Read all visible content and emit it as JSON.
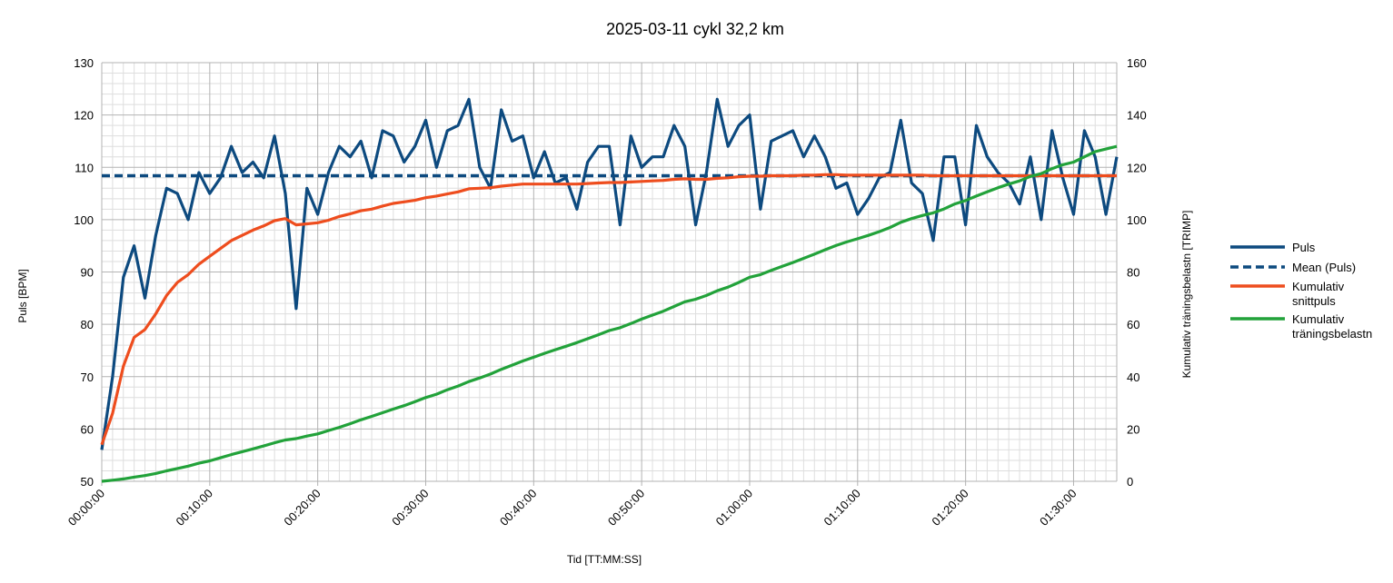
{
  "chart_data": {
    "type": "line",
    "title": "2025-03-11 cykl 32,2 km",
    "xlabel": "Tid [TT:MM:SS]",
    "ylabel_left": "Puls [BPM]",
    "ylabel_right": "Kumulativ träningsbelastn [TRIMP]",
    "x_unit": "minutes",
    "xlim": [
      0,
      94
    ],
    "ylim_left": [
      50,
      130
    ],
    "ylim_right": [
      0,
      160
    ],
    "x_ticks": [
      "00:00:00",
      "00:10:00",
      "00:20:00",
      "00:30:00",
      "00:40:00",
      "00:50:00",
      "01:00:00",
      "01:10:00",
      "01:20:00",
      "01:30:00"
    ],
    "x_tick_minutes": [
      0,
      10,
      20,
      30,
      40,
      50,
      60,
      70,
      80,
      90
    ],
    "y_ticks_left": [
      50,
      60,
      70,
      80,
      90,
      100,
      110,
      120,
      130
    ],
    "y_ticks_right": [
      0,
      20,
      40,
      60,
      80,
      100,
      120,
      140,
      160
    ],
    "grid": true,
    "legend_position": "right",
    "x": [
      0,
      1,
      2,
      3,
      4,
      5,
      6,
      7,
      8,
      9,
      10,
      11,
      12,
      13,
      14,
      15,
      16,
      17,
      18,
      19,
      20,
      21,
      22,
      23,
      24,
      25,
      26,
      27,
      28,
      29,
      30,
      31,
      32,
      33,
      34,
      35,
      36,
      37,
      38,
      39,
      40,
      41,
      42,
      43,
      44,
      45,
      46,
      47,
      48,
      49,
      50,
      51,
      52,
      53,
      54,
      55,
      56,
      57,
      58,
      59,
      60,
      61,
      62,
      63,
      64,
      65,
      66,
      67,
      68,
      69,
      70,
      71,
      72,
      73,
      74,
      75,
      76,
      77,
      78,
      79,
      80,
      81,
      82,
      83,
      84,
      85,
      86,
      87,
      88,
      89,
      90,
      91,
      92,
      93,
      94
    ],
    "series": [
      {
        "name": "Puls",
        "axis": "left",
        "color": "#0d4a7f",
        "style": "solid",
        "values": [
          56,
          70,
          89,
          95,
          85,
          97,
          106,
          105,
          100,
          109,
          105,
          108,
          114,
          109,
          111,
          108,
          116,
          105,
          83,
          106,
          101,
          109,
          114,
          112,
          115,
          108,
          117,
          116,
          111,
          114,
          119,
          110,
          117,
          118,
          123,
          110,
          106,
          121,
          115,
          116,
          108,
          113,
          107,
          108,
          102,
          111,
          114,
          114,
          99,
          116,
          110,
          112,
          112,
          118,
          114,
          99,
          109,
          123,
          114,
          118,
          120,
          102,
          115,
          116,
          117,
          112,
          116,
          112,
          106,
          107,
          101,
          104,
          108,
          109,
          119,
          107,
          105,
          96,
          112,
          112,
          99,
          118,
          112,
          109,
          107,
          103,
          112,
          100,
          117,
          108,
          101,
          117,
          112,
          101,
          112
        ]
      },
      {
        "name": "Mean (Puls)",
        "axis": "left",
        "color": "#0d4a7f",
        "style": "dashed",
        "constant": 108.4
      },
      {
        "name": "Kumulativ snittpuls",
        "axis": "left",
        "color": "#ee4d1e",
        "style": "solid",
        "values": [
          57,
          63,
          72,
          77.5,
          79,
          82,
          85.5,
          88,
          89.5,
          91.5,
          93,
          94.5,
          96,
          97,
          98,
          98.8,
          99.8,
          100.2,
          99,
          99.2,
          99.4,
          99.9,
          100.6,
          101.1,
          101.7,
          102,
          102.6,
          103.1,
          103.4,
          103.7,
          104.2,
          104.5,
          104.9,
          105.3,
          105.9,
          106,
          106.1,
          106.4,
          106.6,
          106.8,
          106.8,
          106.8,
          106.8,
          106.8,
          106.8,
          106.9,
          107,
          107.1,
          107.1,
          107.2,
          107.3,
          107.4,
          107.5,
          107.7,
          107.8,
          107.7,
          107.7,
          107.9,
          108,
          108.2,
          108.3,
          108.3,
          108.4,
          108.4,
          108.4,
          108.5,
          108.5,
          108.6,
          108.6,
          108.5,
          108.5,
          108.5,
          108.5,
          108.5,
          108.5,
          108.5,
          108.5,
          108.4,
          108.4,
          108.4,
          108.4,
          108.4,
          108.4,
          108.4,
          108.4,
          108.4,
          108.4,
          108.4,
          108.4,
          108.4,
          108.4,
          108.4,
          108.4,
          108.4,
          108.4
        ]
      },
      {
        "name": "Kumulativ träningsbelastn",
        "axis": "right",
        "color": "#22a23a",
        "style": "solid",
        "values": [
          0,
          0.4,
          0.9,
          1.6,
          2.2,
          3,
          4,
          4.9,
          5.8,
          6.9,
          7.8,
          9,
          10.2,
          11.3,
          12.4,
          13.5,
          14.7,
          15.8,
          16.3,
          17.3,
          18.1,
          19.4,
          20.6,
          22,
          23.5,
          24.8,
          26.2,
          27.6,
          28.9,
          30.4,
          32,
          33.3,
          35,
          36.4,
          38.1,
          39.5,
          41,
          42.8,
          44.4,
          46,
          47.4,
          48.9,
          50.3,
          51.6,
          53,
          54.5,
          56,
          57.6,
          58.7,
          60.3,
          62,
          63.5,
          65,
          66.8,
          68.6,
          69.6,
          71,
          72.8,
          74.2,
          76,
          78,
          79,
          80.6,
          82.1,
          83.6,
          85.2,
          86.8,
          88.5,
          90.1,
          91.5,
          92.7,
          94,
          95.4,
          97,
          99,
          100.4,
          101.6,
          102.6,
          104.1,
          106,
          107.3,
          109,
          110.6,
          112.2,
          113.6,
          114.8,
          116.5,
          117.6,
          119.5,
          121,
          122,
          124,
          126,
          127,
          128
        ]
      }
    ]
  }
}
